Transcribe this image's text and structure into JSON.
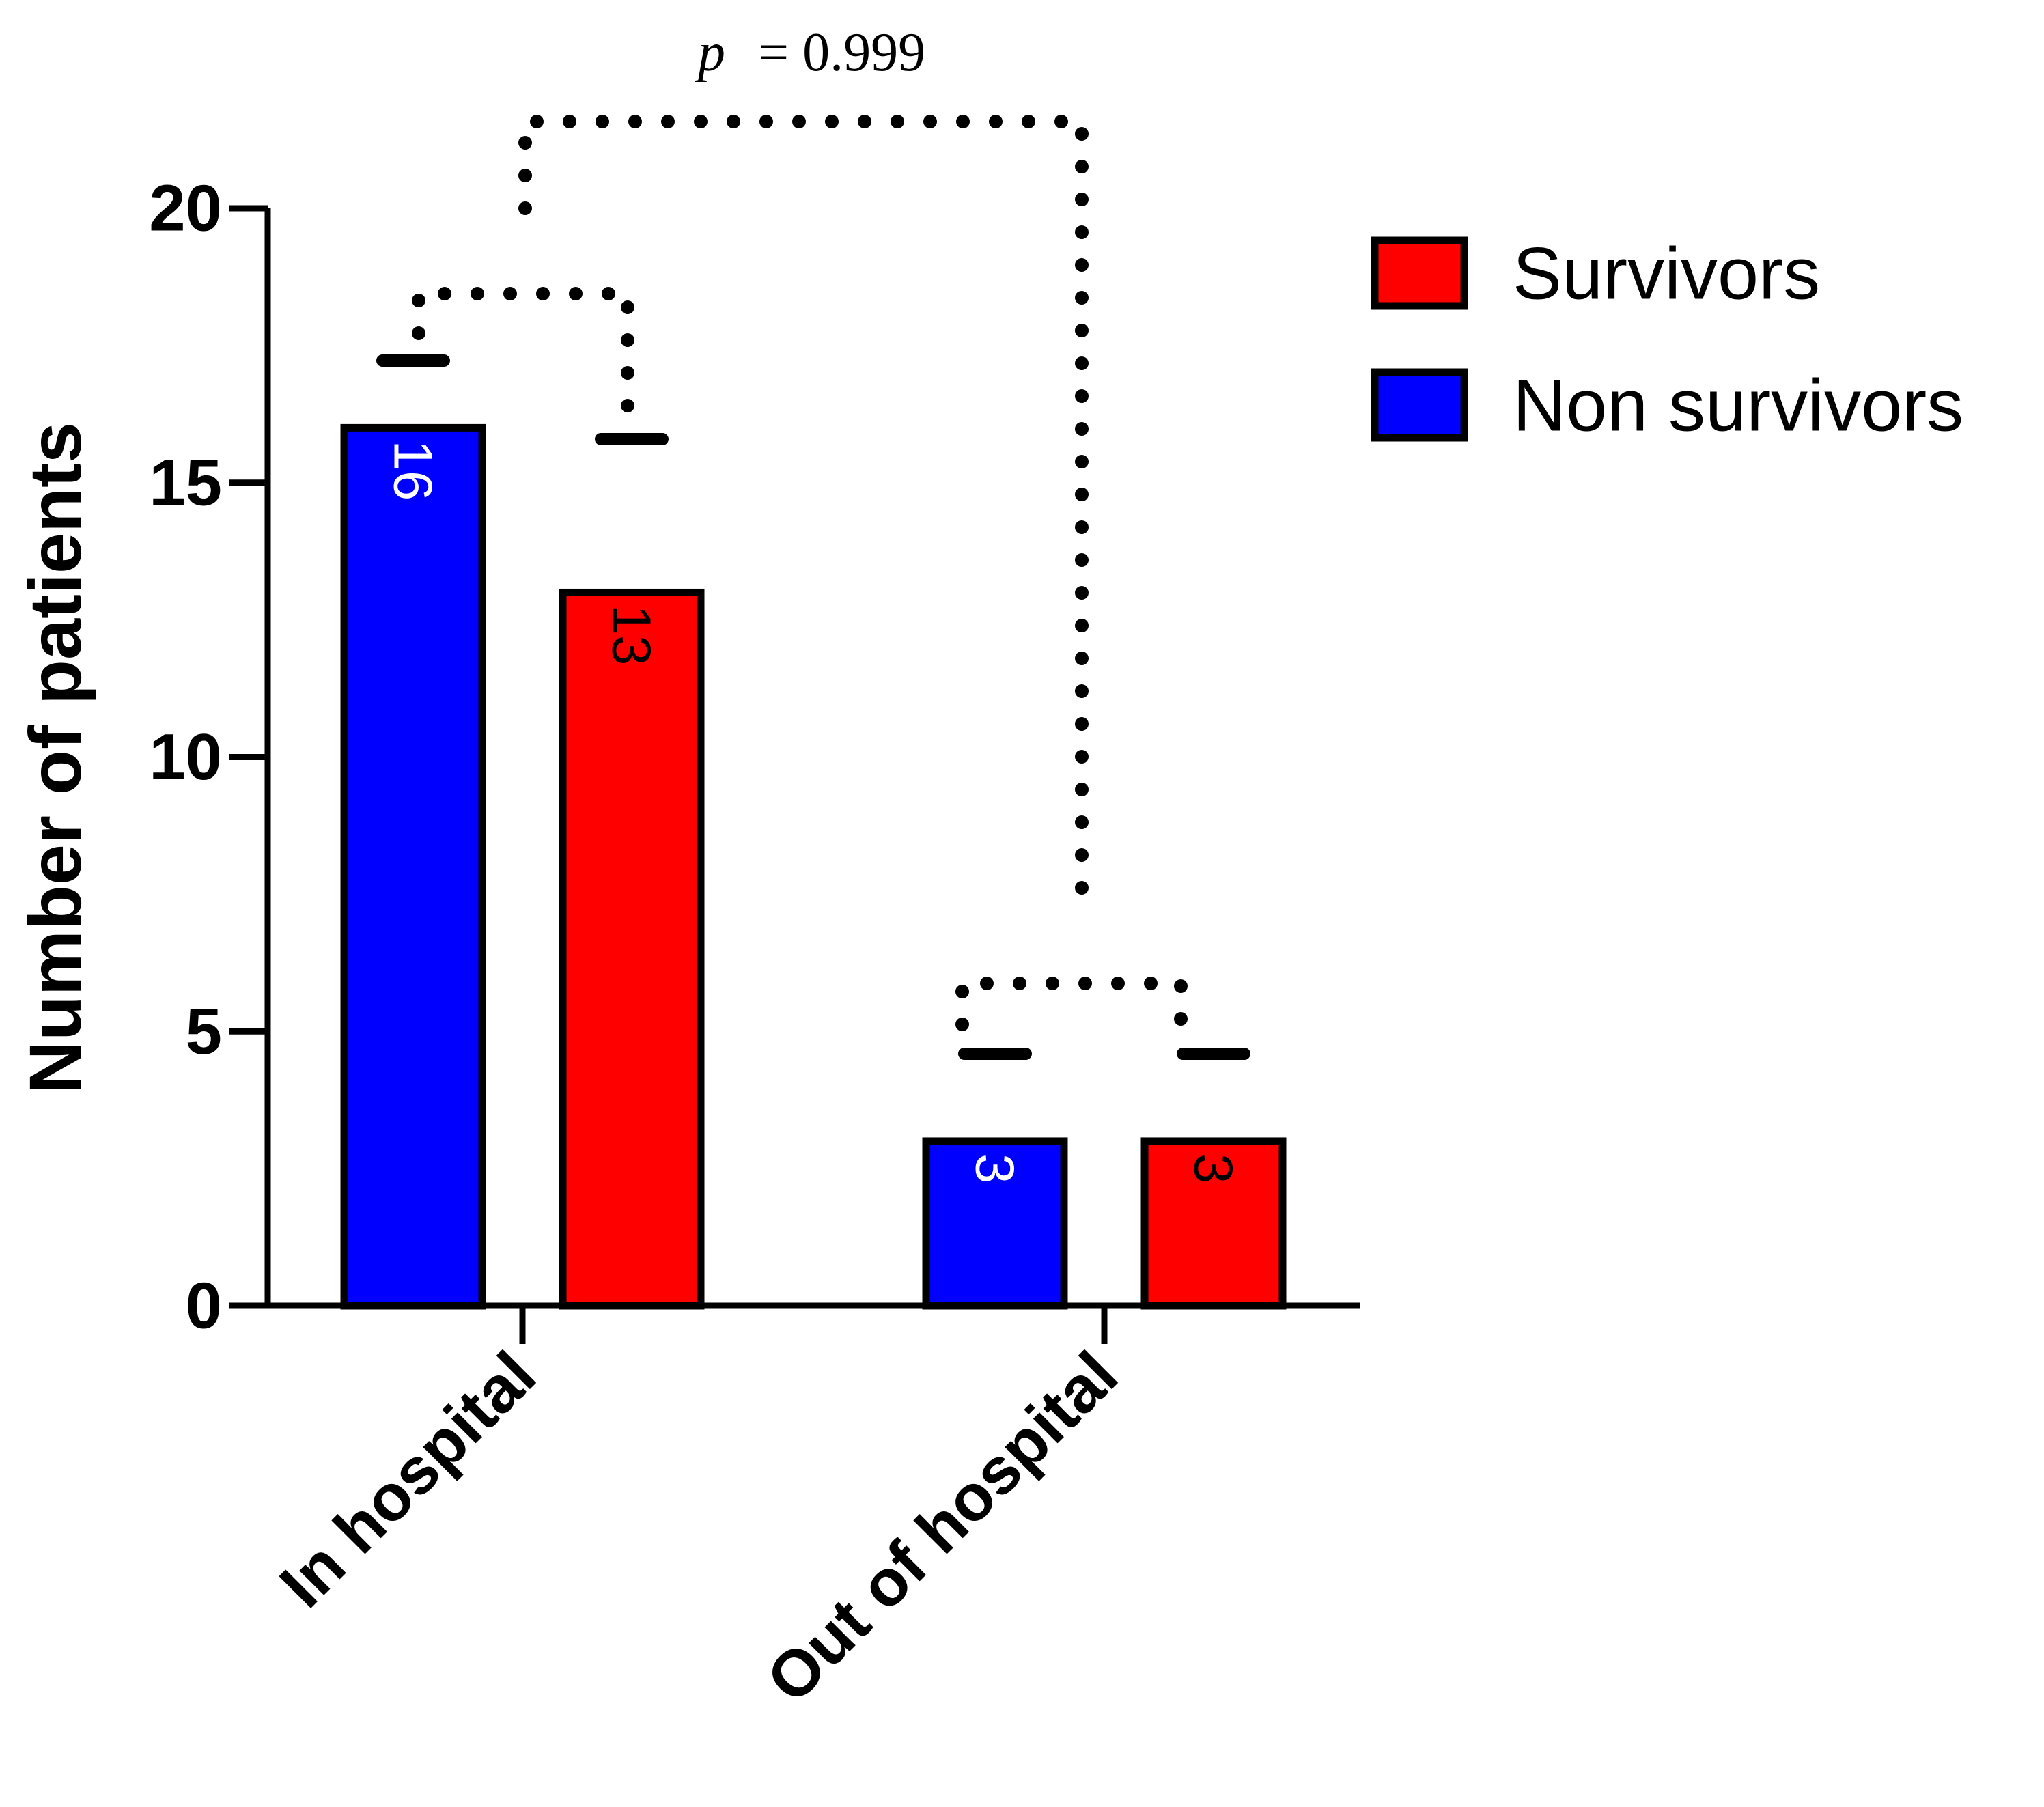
{
  "chart_data": {
    "type": "bar",
    "categories": [
      "In hospital",
      "Out of hospital"
    ],
    "series": [
      {
        "name": "Non survivors",
        "color": "#0000ff",
        "label_color": "#ffffff",
        "values": [
          16,
          3
        ]
      },
      {
        "name": "Survivors",
        "color": "#ff0000",
        "label_color": "#000000",
        "values": [
          13,
          3
        ]
      }
    ],
    "legend_order": [
      "Survivors",
      "Non survivors"
    ],
    "ylabel": "Number of patients",
    "xlabel": "",
    "ylim": [
      0,
      20
    ],
    "yticks": [
      "0",
      "5",
      "10",
      "15",
      "20"
    ],
    "grid": false,
    "legend_position": "top-right",
    "annotation": {
      "p_symbol": "p",
      "p_text": "= 0.999"
    }
  }
}
